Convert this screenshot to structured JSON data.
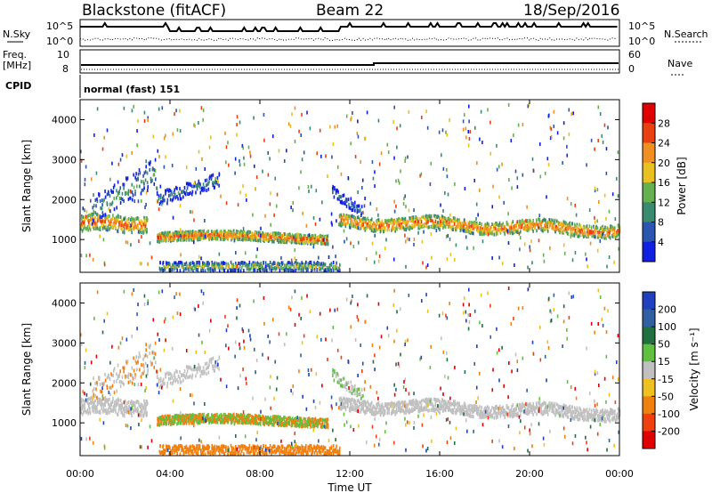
{
  "header": {
    "station": "Blackstone (fitACF)",
    "beam": "Beam 22",
    "date": "18/Sep/2016"
  },
  "top_panels": {
    "nsky_label": "N.Sky",
    "nsearch_label": "N.Search",
    "nsky_ticks": [
      "10^5",
      "10^0"
    ],
    "freq_label": "Freq.",
    "freq_unit": "[MHz]",
    "freq_ticks": [
      "10",
      "8"
    ],
    "nave_label": "Nave",
    "nave_ticks": [
      "60",
      "0"
    ],
    "cpid_label": "CPID",
    "cpid_value": "normal (fast) 151"
  },
  "chart_data": [
    {
      "type": "heatmap",
      "ylabel": "Slant Range [km]",
      "xlabel": "Time UT",
      "xlim": [
        "00:00",
        "24:00"
      ],
      "ylim": [
        180,
        4500
      ],
      "x_ticks": [
        "00:00",
        "04:00",
        "08:00",
        "12:00",
        "16:00",
        "20:00",
        "00:00"
      ],
      "y_ticks": [
        1000,
        2000,
        3000,
        4000
      ],
      "colorbar": {
        "label": "Power [dB]",
        "ticks": [
          4,
          8,
          12,
          16,
          20,
          24,
          28
        ],
        "range": [
          0,
          30
        ],
        "colors": [
          "#1020e0",
          "#2a55b0",
          "#3a8a70",
          "#66b050",
          "#e8c020",
          "#f09020",
          "#e84010",
          "#e00000"
        ]
      }
    },
    {
      "type": "heatmap",
      "ylabel": "Slant Range [km]",
      "xlabel": "Time UT",
      "xlim": [
        "00:00",
        "24:00"
      ],
      "ylim": [
        180,
        4500
      ],
      "x_ticks": [
        "00:00",
        "04:00",
        "08:00",
        "12:00",
        "16:00",
        "20:00",
        "00:00"
      ],
      "y_ticks": [
        1000,
        2000,
        3000,
        4000
      ],
      "colorbar": {
        "label": "Velocity [m s⁻¹]",
        "ticks": [
          200,
          100,
          50,
          15,
          -15,
          -50,
          -100,
          -200
        ],
        "colors": [
          "#2040c0",
          "#3060a0",
          "#207040",
          "#60c040",
          "#c0c0c0",
          "#f0c020",
          "#f08010",
          "#f04010",
          "#e00000"
        ]
      }
    }
  ]
}
